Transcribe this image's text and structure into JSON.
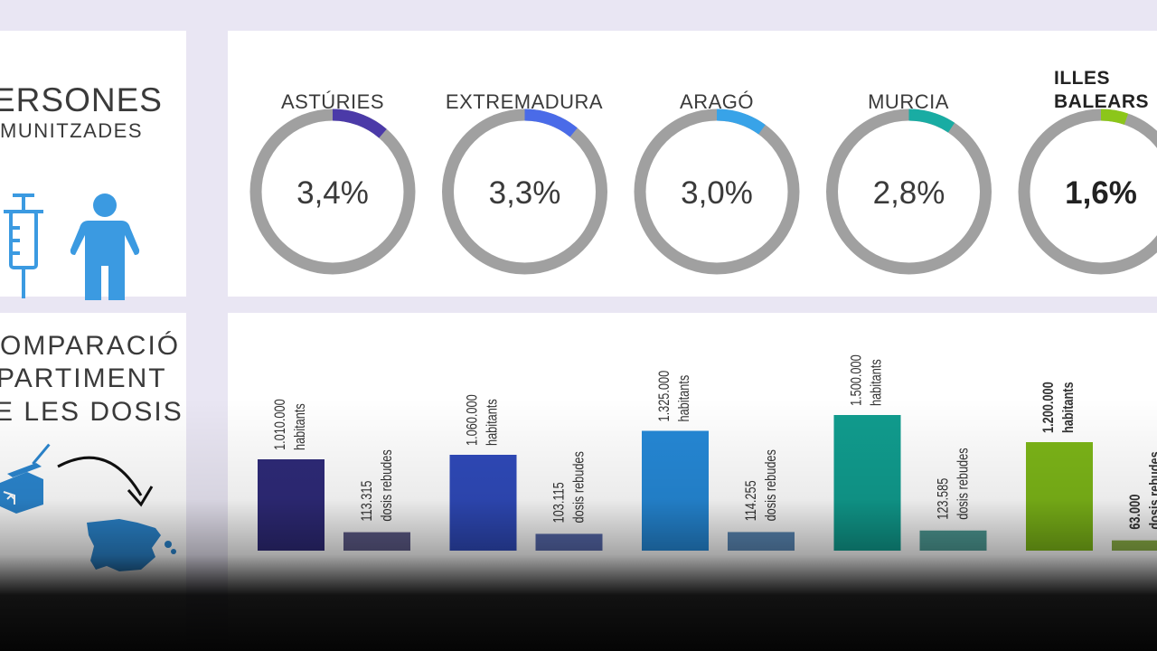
{
  "left_top": {
    "title_line1": "ERSONES",
    "title_line2": "MUNITZADES",
    "icons": [
      "syringe-icon",
      "person-icon"
    ],
    "icon_color": "#3b9ae1"
  },
  "left_bottom": {
    "lines": [
      "OMPARACIÓ",
      "PARTIMENT",
      "E LES DOSIS"
    ],
    "icons": [
      "vaccine-box-icon",
      "curved-arrow-icon",
      "spain-map-icon"
    ],
    "icon_color": "#2b86cf"
  },
  "chart_data": [
    {
      "type": "pie",
      "items": [
        {
          "region": "ASTÚRIES",
          "label": "3,4%",
          "value": 3.4,
          "color": "#4b3aa8",
          "bold": false
        },
        {
          "region": "EXTREMADURA",
          "label": "3,3%",
          "value": 3.3,
          "color": "#4a6be8",
          "bold": false
        },
        {
          "region": "ARAGÓ",
          "label": "3,0%",
          "value": 3.0,
          "color": "#38a3e8",
          "bold": false
        },
        {
          "region": "MURCIA",
          "label": "2,8%",
          "value": 2.8,
          "color": "#19aca3",
          "bold": false
        },
        {
          "region": "ILLES BALEARS",
          "label": "1,6%",
          "value": 1.6,
          "color": "#8cc61a",
          "bold": true
        }
      ],
      "ring_color": "#a0a0a0"
    },
    {
      "type": "bar",
      "groups": [
        {
          "hab_value": 1010000,
          "hab_label": "1.010.000",
          "hab_unit": "habitants",
          "dose_value": 113315,
          "dose_label": "113.315",
          "dose_unit": "dosis rebudes",
          "color": "#2e2a78",
          "dose_color": "#5c5a86",
          "bold": false
        },
        {
          "hab_value": 1060000,
          "hab_label": "1.060.000",
          "hab_unit": "habitants",
          "dose_value": 103115,
          "dose_label": "103.115",
          "dose_unit": "dosis rebudes",
          "color": "#2f4aba",
          "dose_color": "#5567a8",
          "bold": false
        },
        {
          "hab_value": 1325000,
          "hab_label": "1.325.000",
          "hab_unit": "habitants",
          "dose_value": 114255,
          "dose_label": "114.255",
          "dose_unit": "dosis rebudes",
          "color": "#2588d6",
          "dose_color": "#5a87b4",
          "bold": false
        },
        {
          "hab_value": 1500000,
          "hab_label": "1.500.000",
          "hab_unit": "habitants",
          "dose_value": 123585,
          "dose_label": "123.585",
          "dose_unit": "dosis rebudes",
          "color": "#109c8e",
          "dose_color": "#4d9a94",
          "bold": false
        },
        {
          "hab_value": 1200000,
          "hab_label": "1.200.000",
          "hab_unit": "habitants",
          "dose_value": 63000,
          "dose_label": "63.000",
          "dose_unit": "dosis rebudes",
          "color": "#7cb518",
          "dose_color": "#8aae46",
          "bold": true
        }
      ]
    }
  ]
}
